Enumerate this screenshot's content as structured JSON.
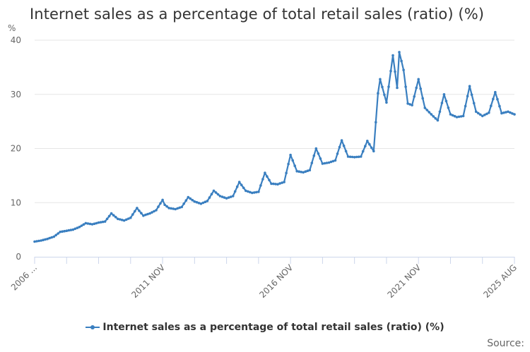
{
  "title": "Internet sales as a percentage of total retail sales (ratio) (%)",
  "y_unit": "%",
  "legend": {
    "label": "Internet sales as a percentage of total retail sales (ratio) (%)"
  },
  "source_label": "Source:",
  "colors": {
    "series": "#3a7fc0",
    "grid": "#e6e6e6",
    "axis": "#ccd6eb",
    "text": "#333333",
    "tick_text": "#666666"
  },
  "chart_data": {
    "type": "line",
    "title": "Internet sales as a percentage of total retail sales (ratio) (%)",
    "xlabel": "",
    "ylabel": "%",
    "ylim": [
      0,
      40
    ],
    "yticks": [
      0,
      10,
      20,
      30,
      40
    ],
    "xtick_labels": [
      "2006 ...",
      "2011 NOV",
      "2016 NOV",
      "2021 NOV",
      "2025 AUG"
    ],
    "grid": true,
    "legend_position": "bottom",
    "series": [
      {
        "name": "Internet sales as a percentage of total retail sales (ratio) (%)",
        "x": [
          "2006 Nov",
          "2007 Feb",
          "2007 May",
          "2007 Aug",
          "2007 Nov",
          "2008 Feb",
          "2008 May",
          "2008 Aug",
          "2008 Nov",
          "2009 Feb",
          "2009 May",
          "2009 Aug",
          "2009 Nov",
          "2010 Feb",
          "2010 May",
          "2010 Aug",
          "2010 Nov",
          "2010 Dec",
          "2011 Feb",
          "2011 May",
          "2011 Aug",
          "2011 Nov",
          "2011 Dec",
          "2012 Feb",
          "2012 May",
          "2012 Aug",
          "2012 Nov",
          "2013 Feb",
          "2013 May",
          "2013 Aug",
          "2013 Nov",
          "2014 Feb",
          "2014 May",
          "2014 Aug",
          "2014 Nov",
          "2015 Feb",
          "2015 May",
          "2015 Aug",
          "2015 Nov",
          "2016 Feb",
          "2016 May",
          "2016 Aug",
          "2016 Nov",
          "2017 Feb",
          "2017 May",
          "2017 Aug",
          "2017 Nov",
          "2018 Feb",
          "2018 May",
          "2018 Aug",
          "2018 Nov",
          "2019 Feb",
          "2019 May",
          "2019 Aug",
          "2019 Nov",
          "2020 Feb",
          "2020 Apr",
          "2020 May",
          "2020 Aug",
          "2020 Nov",
          "2021 Jan",
          "2021 Feb",
          "2021 Apr",
          "2021 Jun",
          "2021 Aug",
          "2021 Nov",
          "2022 Feb",
          "2022 May",
          "2022 Aug",
          "2022 Nov",
          "2023 Feb",
          "2023 May",
          "2023 Aug",
          "2023 Nov",
          "2024 Feb",
          "2024 May",
          "2024 Aug",
          "2024 Nov",
          "2025 Feb",
          "2025 May",
          "2025 Aug"
        ],
        "values": [
          2.8,
          3.0,
          3.3,
          3.7,
          4.6,
          4.8,
          5.0,
          5.5,
          6.2,
          6.0,
          6.3,
          6.5,
          8.0,
          7.0,
          6.7,
          7.2,
          9.0,
          8.5,
          7.6,
          8.0,
          8.6,
          10.5,
          9.6,
          9.0,
          8.8,
          9.2,
          11.0,
          10.2,
          9.8,
          10.3,
          12.2,
          11.2,
          10.8,
          11.2,
          13.8,
          12.2,
          11.8,
          12.0,
          15.5,
          13.5,
          13.4,
          13.8,
          18.8,
          15.8,
          15.6,
          16.0,
          20.0,
          17.2,
          17.4,
          17.8,
          21.5,
          18.5,
          18.4,
          18.5,
          21.4,
          19.5,
          30.2,
          32.8,
          28.5,
          37.2,
          31.2,
          37.8,
          34.5,
          28.3,
          28.0,
          32.8,
          27.5,
          26.3,
          25.2,
          30.0,
          26.3,
          25.8,
          26.0,
          31.5,
          26.8,
          26.0,
          26.6,
          30.4,
          26.5,
          26.8,
          26.3
        ]
      }
    ]
  }
}
